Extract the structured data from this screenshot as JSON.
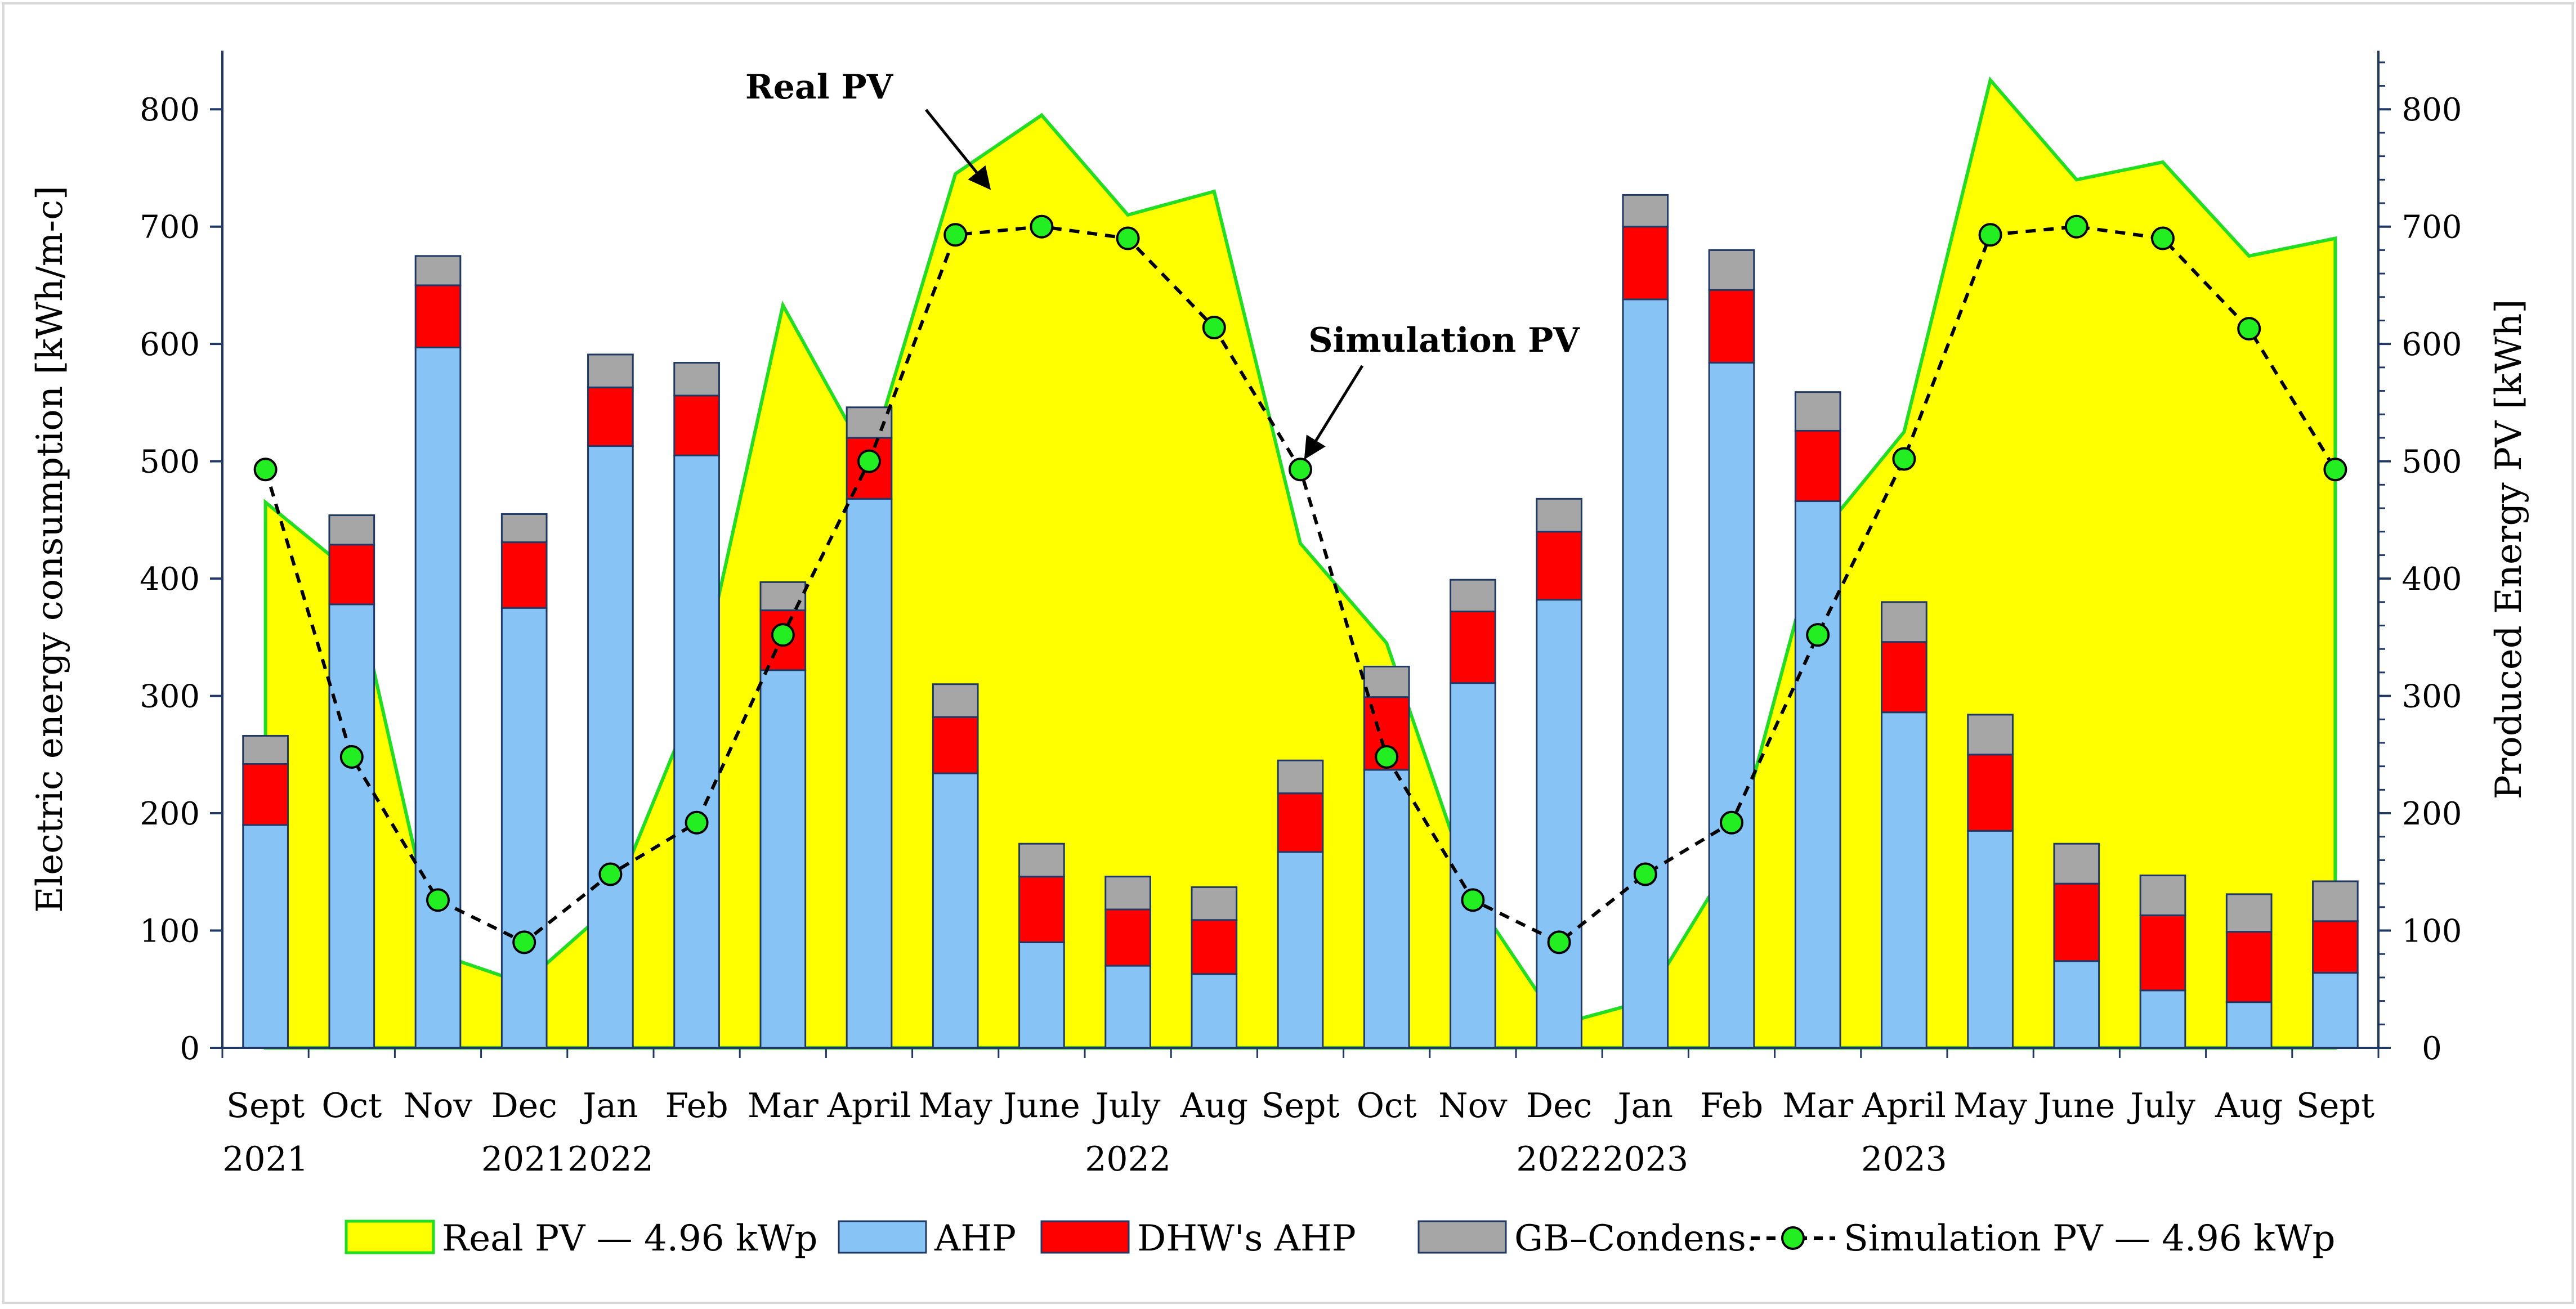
{
  "chart_data": {
    "type": "bar",
    "title": "",
    "categories": [
      "Sept",
      "Oct",
      "Nov",
      "Dec",
      "Jan",
      "Feb",
      "Mar",
      "April",
      "May",
      "June",
      "July",
      "Aug",
      "Sept",
      "Oct",
      "Nov",
      "Dec",
      "Jan",
      "Feb",
      "Mar",
      "April",
      "May",
      "June",
      "July",
      "Aug",
      "Sept"
    ],
    "year_labels": [
      {
        "index": 0,
        "text": "2021"
      },
      {
        "index": 3,
        "text": "2021"
      },
      {
        "index": 4,
        "text": "2022"
      },
      {
        "index": 10,
        "text": "2022"
      },
      {
        "index": 15,
        "text": "2022"
      },
      {
        "index": 16,
        "text": "2023"
      },
      {
        "index": 19,
        "text": "2023"
      }
    ],
    "ylabel": "Electric energy consumption  [kWh/m-c]",
    "y2label": "Produced Energy PV [kWh]",
    "ylim": [
      0,
      850
    ],
    "y2lim": [
      0,
      850
    ],
    "yticks": [
      0,
      100,
      200,
      300,
      400,
      500,
      600,
      700,
      800
    ],
    "series": [
      {
        "name": "AHP",
        "kind": "stacked-bar",
        "color": "#87c4f5",
        "values": [
          190,
          378,
          597,
          375,
          513,
          505,
          322,
          468,
          234,
          90,
          70,
          63,
          167,
          237,
          311,
          382,
          638,
          584,
          466,
          286,
          185,
          74,
          49,
          39,
          64
        ]
      },
      {
        "name": "DHW's AHP",
        "kind": "stacked-bar",
        "color": "#ff0000",
        "values": [
          52,
          51,
          53,
          56,
          50,
          51,
          51,
          52,
          48,
          56,
          48,
          46,
          50,
          62,
          61,
          58,
          62,
          62,
          60,
          60,
          65,
          66,
          64,
          60,
          44
        ]
      },
      {
        "name": "GB–Condens.",
        "kind": "stacked-bar",
        "color": "#a6a6a6",
        "values": [
          24,
          25,
          25,
          24,
          28,
          28,
          24,
          26,
          28,
          28,
          28,
          28,
          28,
          26,
          27,
          28,
          27,
          34,
          33,
          34,
          34,
          34,
          34,
          32,
          34
        ]
      },
      {
        "name": "Real PV — 4.96 kWp",
        "kind": "area",
        "axis": "right",
        "color": "#ffff00",
        "edge": "#22dd22",
        "values": [
          465,
          405,
          80,
          55,
          120,
          300,
          633,
          500,
          745,
          795,
          710,
          730,
          430,
          345,
          130,
          20,
          40,
          160,
          435,
          525,
          825,
          740,
          755,
          675,
          690
        ]
      },
      {
        "name": "Simulation PV — 4.96 kWp",
        "kind": "line",
        "axis": "right",
        "color": "#22ee22",
        "values": [
          493,
          248,
          126,
          90,
          148,
          192,
          352,
          500,
          693,
          700,
          690,
          614,
          493,
          248,
          126,
          90,
          148,
          192,
          352,
          502,
          693,
          700,
          690,
          613,
          493
        ]
      }
    ],
    "annotations": [
      {
        "text": "Real PV",
        "target_index": 8.5,
        "target_value": 735
      },
      {
        "text": "Simulation PV",
        "target_index": 12,
        "target_value": 493
      }
    ],
    "legend_position": "bottom"
  }
}
